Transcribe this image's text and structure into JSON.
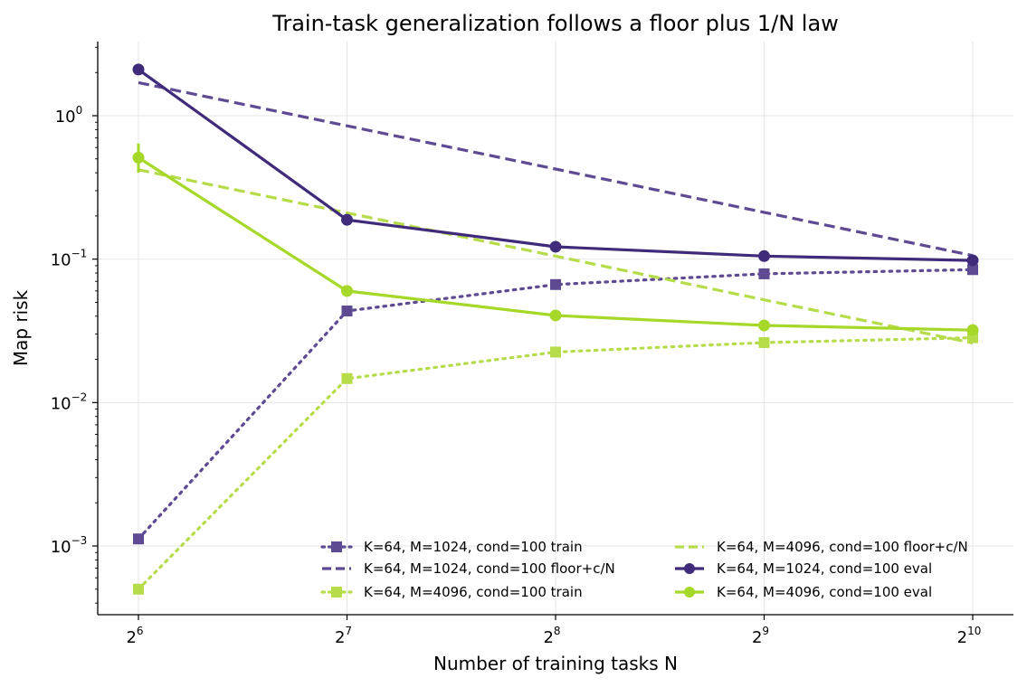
{
  "chart_data": {
    "type": "line",
    "title": "Train-task generalization follows a floor plus 1/N law",
    "xlabel": "Number of training tasks N",
    "ylabel": "Map risk",
    "x": [
      64,
      128,
      256,
      512,
      1024
    ],
    "x_tick_base": "2",
    "x_tick_exponents": [
      "6",
      "7",
      "8",
      "9",
      "10"
    ],
    "y_tick_base": "10",
    "y_tick_exponents": [
      "−3",
      "−2",
      "−1",
      "0"
    ],
    "y_scale": "log",
    "x_scale": "log2",
    "ylim": [
      0.00033,
      3.3
    ],
    "grid": true,
    "legend_placement": "lower-right",
    "colors": {
      "purple": "#3f2b7a",
      "purple_light": "#5e4a93",
      "green": "#a6d82a",
      "green_light": "#b6dc4a"
    },
    "series": [
      {
        "name": "K=64, M=1024, cond=100 train",
        "color": "#5e4a93",
        "style": "dotted",
        "marker": "square",
        "values": [
          0.00112,
          0.0435,
          0.0665,
          0.079,
          0.0845
        ]
      },
      {
        "name": "K=64, M=1024, cond=100 floor+c/N",
        "color": "#5e4a93",
        "style": "dashed",
        "marker": "none",
        "values": [
          1.7,
          0.85,
          0.425,
          0.212,
          0.106
        ]
      },
      {
        "name": "K=64, M=4096, cond=100 train",
        "color": "#b6dc4a",
        "style": "dotted",
        "marker": "square",
        "values": [
          0.0005,
          0.0147,
          0.0225,
          0.0262,
          0.0283
        ]
      },
      {
        "name": "K=64, M=4096, cond=100 floor+c/N",
        "color": "#b6dc4a",
        "style": "dashed",
        "marker": "none",
        "values": [
          0.42,
          0.21,
          0.105,
          0.052,
          0.026
        ]
      },
      {
        "name": "K=64, M=1024, cond=100 eval",
        "color": "#3f2b7a",
        "style": "solid",
        "marker": "circle",
        "values": [
          2.1,
          0.188,
          0.122,
          0.105,
          0.098
        ]
      },
      {
        "name": "K=64, M=4096, cond=100 eval",
        "color": "#a6d82a",
        "style": "solid",
        "marker": "circle",
        "values": [
          0.51,
          0.06,
          0.0405,
          0.0345,
          0.032
        ],
        "error_low": [
          0.4,
          null,
          null,
          null,
          null
        ],
        "error_high": [
          0.64,
          null,
          null,
          null,
          null
        ]
      }
    ]
  }
}
